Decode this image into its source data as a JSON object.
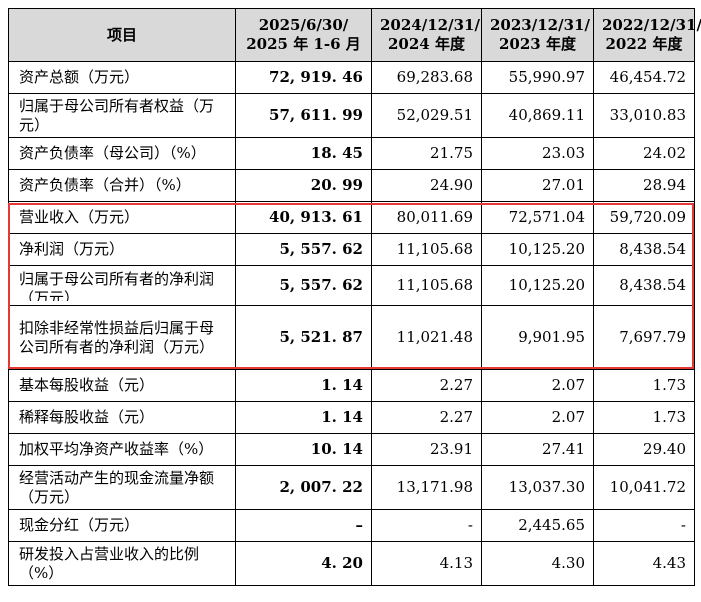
{
  "headers": [
    "项目",
    "2025/6/30/\n2025 年 1-6 月",
    "2024/12/31/\n2024 年度",
    "2023/12/31/\n2023 年度",
    "2022/12/31/\n2022 年度"
  ],
  "rows": [
    {
      "label": "资产总额（万元）",
      "values": [
        "72, 919. 46",
        "69,283.68",
        "55,990.97",
        "46,454.72"
      ]
    },
    {
      "label": "归属于母公司所有者权益（万元）",
      "values": [
        "57, 611. 99",
        "52,029.51",
        "40,869.11",
        "33,010.83"
      ]
    },
    {
      "label": "资产负债率（母公司）（%）",
      "values": [
        "18. 45",
        "21.75",
        "23.03",
        "24.02"
      ]
    },
    {
      "label": "资产负债率（合并）（%）",
      "values": [
        "20. 99",
        "24.90",
        "27.01",
        "28.94"
      ]
    },
    {
      "label": "营业收入（万元）",
      "values": [
        "40, 913. 61",
        "80,011.69",
        "72,571.04",
        "59,720.09"
      ]
    },
    {
      "label": "净利润（万元）",
      "values": [
        "5, 557. 62",
        "11,105.68",
        "10,125.20",
        "8,438.54"
      ]
    },
    {
      "label": "归属于母公司所有者的净利润（万元）",
      "values": [
        "5, 557. 62",
        "11,105.68",
        "10,125.20",
        "8,438.54"
      ]
    },
    {
      "label": "扣除非经常性损益后归属于母公司所有者的净利润（万元）",
      "values": [
        "5, 521. 87",
        "11,021.48",
        "9,901.95",
        "7,697.79"
      ]
    },
    {
      "label": "基本每股收益（元）",
      "values": [
        "1. 14",
        "2.27",
        "2.07",
        "1.73"
      ]
    },
    {
      "label": "稀释每股收益（元）",
      "values": [
        "1. 14",
        "2.27",
        "2.07",
        "1.73"
      ]
    },
    {
      "label": "加权平均净资产收益率（%）",
      "values": [
        "10. 14",
        "23.91",
        "27.41",
        "29.40"
      ]
    },
    {
      "label": "经营活动产生的现金流量净额（万元）",
      "values": [
        "2, 007. 22",
        "13,171.98",
        "13,037.30",
        "10,041.72"
      ]
    },
    {
      "label": "现金分红（万元）",
      "values": [
        "–",
        "-",
        "2,445.65",
        "-"
      ]
    },
    {
      "label": "研发投入占营业收入的比例（%）",
      "values": [
        "4. 20",
        "4.13",
        "4.30",
        "4.43"
      ]
    }
  ]
}
